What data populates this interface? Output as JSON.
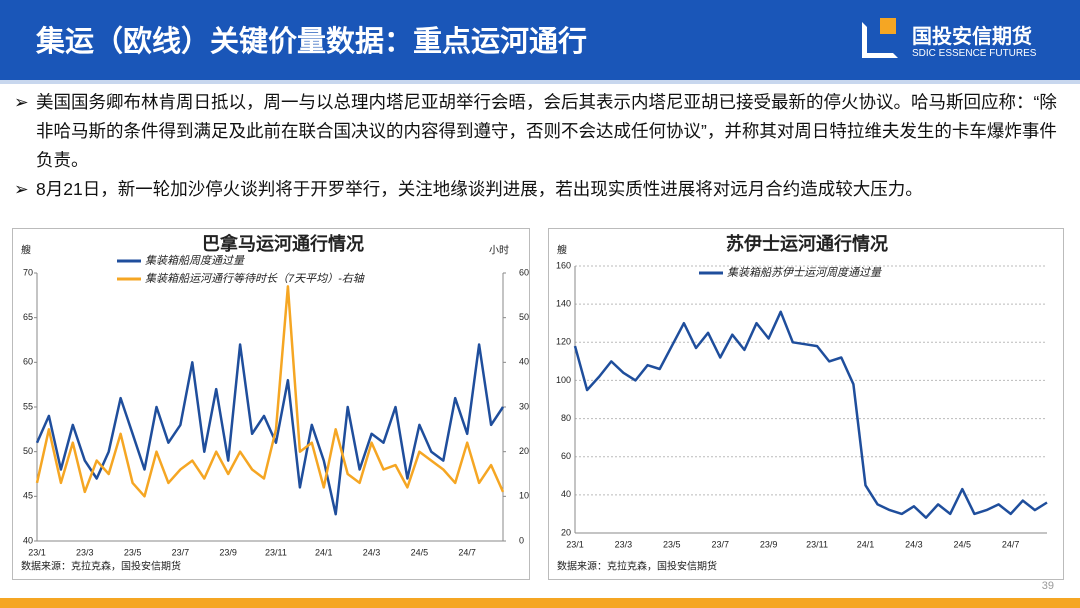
{
  "header": {
    "title": "集运（欧线）关键价量数据：重点运河通行",
    "logo_cn": "国投安信期货",
    "logo_en": "SDIC ESSENCE FUTURES"
  },
  "bullets": [
    "美国国务卿布林肯周日抵以，周一与以总理内塔尼亚胡举行会晤，会后其表示内塔尼亚胡已接受最新的停火协议。哈马斯回应称：“除非哈马斯的条件得到满足及此前在联合国决议的内容得到遵守，否则不会达成任何协议”，并称其对周日特拉维夫发生的卡车爆炸事件负责。",
    "8月21日，新一轮加沙停火谈判将于开罗举行，关注地缘谈判进展，若出现实质性进展将对远月合约造成较大压力。"
  ],
  "page_number": "39",
  "chart_data": [
    {
      "type": "line",
      "title": "巴拿马运河通行情况",
      "y_label": "艘",
      "y2_label": "小时",
      "source": "数据来源：克拉克森，国投安信期货",
      "grid": false,
      "categories": [
        "23/1",
        null,
        null,
        null,
        "23/3",
        null,
        null,
        null,
        "23/5",
        null,
        null,
        null,
        "23/7",
        null,
        null,
        null,
        "23/9",
        null,
        null,
        null,
        "23/11",
        null,
        null,
        null,
        "24/1",
        null,
        null,
        null,
        "24/3",
        null,
        null,
        null,
        "24/5",
        null,
        null,
        null,
        "24/7",
        null,
        null,
        null
      ],
      "ylim": [
        40,
        70
      ],
      "yticks": [
        40,
        45,
        50,
        55,
        60,
        65,
        70
      ],
      "y2lim": [
        0,
        60
      ],
      "y2ticks": [
        0,
        10,
        20,
        30,
        40,
        50,
        60
      ],
      "series": [
        {
          "name": "集装箱船周度通过量",
          "color": "#1f4e9c",
          "values": [
            51,
            54,
            48,
            53,
            49,
            47,
            50,
            56,
            52,
            48,
            55,
            51,
            53,
            60,
            50,
            57,
            49,
            62,
            52,
            54,
            51,
            58,
            46,
            53,
            49,
            43,
            55,
            48,
            52,
            51,
            55,
            47,
            53,
            50,
            49,
            56,
            52,
            62,
            53,
            55
          ]
        },
        {
          "name": "集装箱船运河通行等待时长（7天平均）-右轴",
          "color": "#f5a623",
          "axis": "y2",
          "values": [
            13,
            25,
            13,
            22,
            11,
            18,
            15,
            24,
            13,
            10,
            20,
            13,
            16,
            18,
            14,
            20,
            15,
            20,
            16,
            14,
            25,
            57,
            20,
            22,
            12,
            25,
            15,
            13,
            22,
            16,
            17,
            12,
            20,
            18,
            16,
            13,
            22,
            13,
            17,
            11
          ]
        }
      ]
    },
    {
      "type": "line",
      "title": "苏伊士运河通行情况",
      "y_label": "艘",
      "source": "数据来源：克拉克森，国投安信期货",
      "grid": true,
      "categories": [
        "23/1",
        null,
        null,
        null,
        "23/3",
        null,
        null,
        null,
        "23/5",
        null,
        null,
        null,
        "23/7",
        null,
        null,
        null,
        "23/9",
        null,
        null,
        null,
        "23/11",
        null,
        null,
        null,
        "24/1",
        null,
        null,
        null,
        "24/3",
        null,
        null,
        null,
        "24/5",
        null,
        null,
        null,
        "24/7",
        null,
        null,
        null
      ],
      "ylim": [
        20,
        160
      ],
      "yticks": [
        20,
        40,
        60,
        80,
        100,
        120,
        140,
        160
      ],
      "series": [
        {
          "name": "集装箱船苏伊士运河周度通过量",
          "color": "#1f4e9c",
          "values": [
            118,
            95,
            102,
            110,
            104,
            100,
            108,
            106,
            118,
            130,
            117,
            125,
            112,
            124,
            116,
            130,
            122,
            136,
            120,
            119,
            118,
            110,
            112,
            98,
            45,
            35,
            32,
            30,
            34,
            28,
            35,
            30,
            43,
            30,
            32,
            35,
            30,
            37,
            32,
            36
          ]
        }
      ]
    }
  ]
}
